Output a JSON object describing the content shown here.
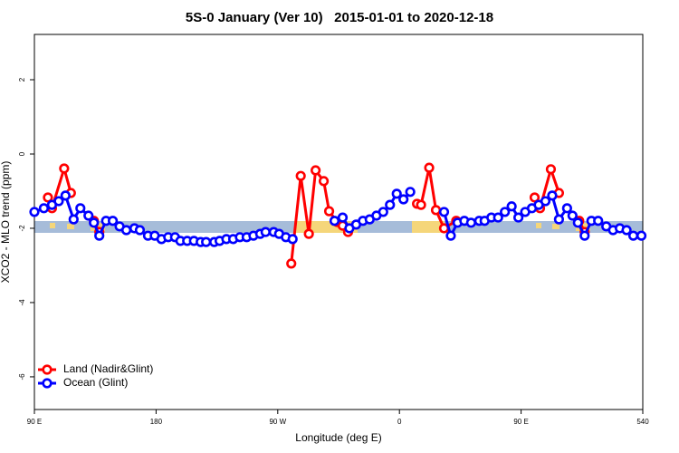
{
  "chart_data": {
    "type": "line",
    "title": "5S-0 January (Ver 10)   2015-01-01 to 2020-12-18",
    "x_label": "Longitude (deg E)",
    "y_label": "XCO2 - MLO trend (ppm)",
    "xlim": [
      90,
      540
    ],
    "ylim": [
      -6.88,
      3.22
    ],
    "xticks": [
      {
        "value": 90,
        "label": "90 E"
      },
      180,
      {
        "value": 270,
        "label": "90 W"
      },
      {
        "value": 360,
        "label": "0"
      },
      {
        "value": 450,
        "label": "90 E"
      },
      540
    ],
    "yticks": [
      2,
      0,
      -2,
      -4,
      -6
    ],
    "legend": "bottom-left",
    "series": [
      {
        "name": "Land (Nadir&Glint)",
        "color": "#ff0000",
        "x": [
          100,
          103,
          112,
          117,
          null,
          134,
          138,
          null,
          280,
          287,
          293,
          298,
          304,
          308,
          314,
          318,
          322,
          null,
          373,
          376,
          382,
          387,
          393,
          402,
          null,
          460,
          464,
          472,
          478,
          null,
          493,
          497
        ],
        "values": [
          -1.17,
          -1.46,
          -0.39,
          -1.05,
          null,
          -1.8,
          -2.1,
          null,
          -2.95,
          -0.59,
          -2.15,
          -0.44,
          -0.73,
          -1.54,
          -1.83,
          -1.93,
          -2.1,
          null,
          -1.34,
          -1.37,
          -0.37,
          -1.51,
          -2.0,
          -1.8,
          null,
          -1.17,
          -1.46,
          -0.41,
          -1.05,
          null,
          -1.8,
          -2.1
        ]
      },
      {
        "name": "Ocean (Glint)",
        "color": "#0000ff",
        "x": [
          90,
          97,
          103,
          108,
          113,
          119,
          124,
          130,
          134,
          138,
          143,
          148,
          153,
          158,
          164,
          168,
          174,
          179,
          184,
          189,
          194,
          198,
          203,
          208,
          213,
          217,
          223,
          227,
          232,
          237,
          242,
          247,
          252,
          257,
          261,
          267,
          271,
          276,
          281,
          null,
          312,
          318,
          323,
          328,
          333,
          338,
          343,
          348,
          353,
          358,
          363,
          368,
          null,
          393,
          398,
          403,
          408,
          413,
          419,
          423,
          428,
          433,
          438,
          443,
          448,
          453,
          458,
          463,
          468,
          473,
          478,
          484,
          488,
          492,
          497,
          502,
          507,
          513,
          518,
          523,
          528,
          533,
          539
        ],
        "values": [
          -1.56,
          -1.46,
          -1.37,
          -1.27,
          -1.12,
          -1.76,
          -1.46,
          -1.66,
          -1.85,
          -2.2,
          -1.8,
          -1.8,
          -1.95,
          -2.05,
          -2.0,
          -2.05,
          -2.2,
          -2.2,
          -2.29,
          -2.24,
          -2.24,
          -2.34,
          -2.34,
          -2.34,
          -2.37,
          -2.37,
          -2.37,
          -2.34,
          -2.29,
          -2.29,
          -2.24,
          -2.24,
          -2.2,
          -2.15,
          -2.1,
          -2.1,
          -2.15,
          -2.24,
          -2.29,
          null,
          -1.8,
          -1.71,
          -2.0,
          -1.9,
          -1.8,
          -1.76,
          -1.66,
          -1.56,
          -1.37,
          -1.07,
          -1.22,
          -1.02,
          null,
          -1.56,
          -2.2,
          -1.85,
          -1.8,
          -1.85,
          -1.8,
          -1.8,
          -1.71,
          -1.71,
          -1.56,
          -1.41,
          -1.71,
          -1.56,
          -1.46,
          -1.37,
          -1.27,
          -1.12,
          -1.76,
          -1.46,
          -1.66,
          -1.85,
          -2.2,
          -1.8,
          -1.8,
          -1.95,
          -2.05,
          -2.0,
          -2.05,
          -2.2,
          -2.2
        ]
      }
    ]
  }
}
